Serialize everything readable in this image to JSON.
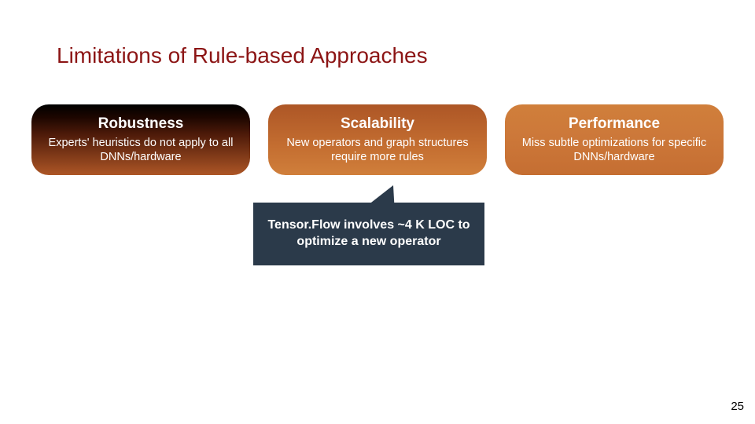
{
  "title": "Limitations of Rule-based Approaches",
  "cards": [
    {
      "heading": "Robustness",
      "body": "Experts' heuristics do not apply to all DNNs/hardware"
    },
    {
      "heading": "Scalability",
      "body": "New operators and graph structures require more rules"
    },
    {
      "heading": "Performance",
      "body": "Miss subtle optimizations for specific DNNs/hardware"
    }
  ],
  "callout": "Tensor.Flow involves ~4 K LOC to optimize a new operator",
  "page_number": "25",
  "colors": {
    "title_color": "#8c1515",
    "card_gradients": {
      "robustness": [
        "#000000",
        "#1c0600",
        "#4d1a09",
        "#ad5626"
      ],
      "scalability": [
        "#ad5626",
        "#c46e31",
        "#d07f3b"
      ],
      "performance": [
        "#d07f3b",
        "#cd793a",
        "#c56e32"
      ]
    },
    "callout_bg": "#2b3a4a",
    "text_white": "#ffffff",
    "background": "#ffffff"
  },
  "layout": {
    "slide_size": [
      960,
      540
    ],
    "card_size": [
      278,
      90
    ],
    "card_radius": 22,
    "title_fontsize": 28,
    "card_heading_fontsize": 19,
    "card_body_fontsize": 14.5,
    "callout_fontsize": 16,
    "pagenum_fontsize": 15
  }
}
